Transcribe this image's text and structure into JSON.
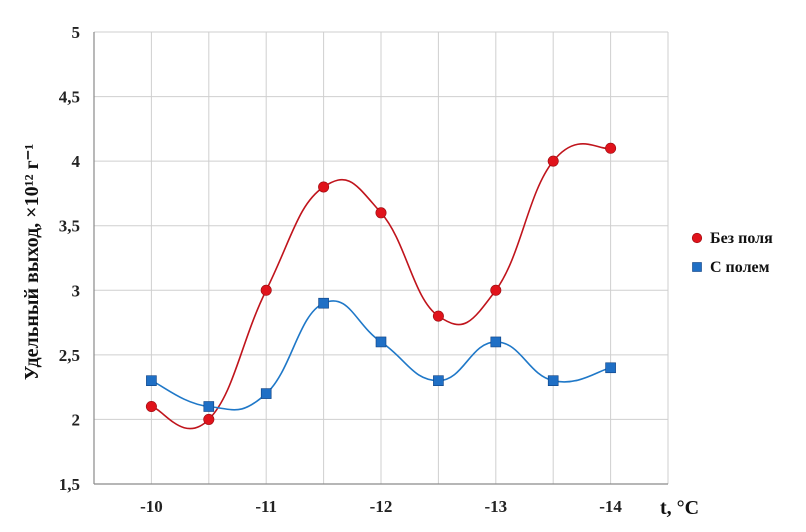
{
  "chart_data": {
    "type": "scatter",
    "title": "",
    "xlabel": "t, °C",
    "ylabel": "Удельный выход, ×10¹² г⁻¹",
    "ylim": [
      1.5,
      5
    ],
    "yticks": [
      "1,5",
      "2",
      "2,5",
      "3",
      "3,5",
      "4",
      "4,5",
      "5"
    ],
    "categories": [
      "-10",
      "-11",
      "-12",
      "-13",
      "-14"
    ],
    "x": [
      -10,
      -10.5,
      -11,
      -11.5,
      -12,
      -12.5,
      -13,
      -13.5,
      -14
    ],
    "grid": true,
    "legend_position": "right",
    "series": [
      {
        "name": "Без поля",
        "marker": "circle",
        "color": "#e0131b",
        "line_color": "#c0141c",
        "values": [
          2.1,
          2.0,
          3.0,
          3.8,
          3.6,
          2.8,
          3.0,
          4.0,
          4.1
        ]
      },
      {
        "name": "С полем",
        "marker": "square",
        "color": "#1f6fc5",
        "line_color": "#1f78c8",
        "values": [
          2.3,
          2.1,
          2.2,
          2.9,
          2.6,
          2.3,
          2.6,
          2.3,
          2.4
        ]
      }
    ]
  }
}
